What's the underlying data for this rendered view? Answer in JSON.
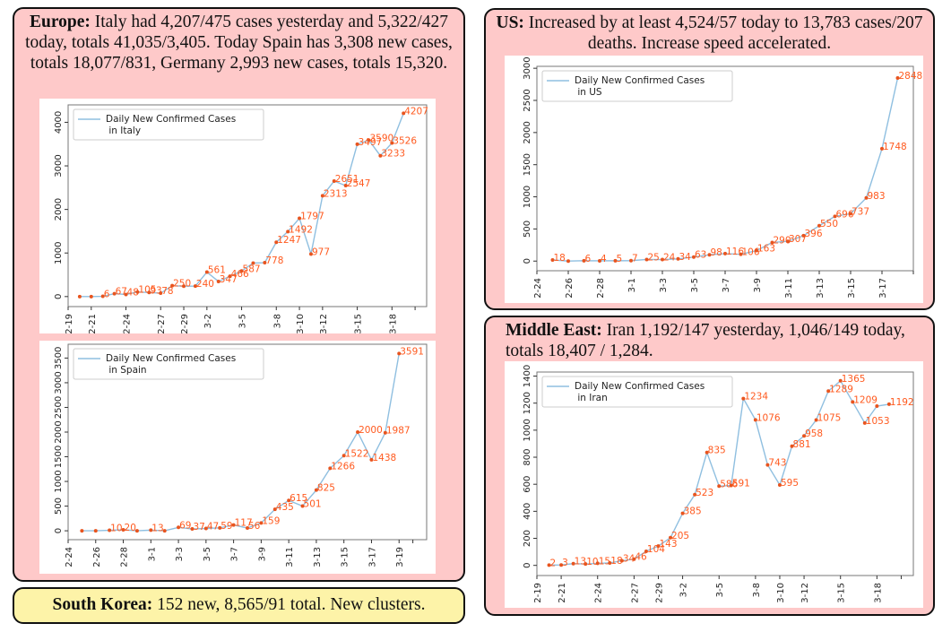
{
  "panels": {
    "europe": {
      "heading": "Europe:",
      "text": " Italy had 4,207/475 cases yesterday and 5,322/427 today, totals 41,035/3,405. Today Spain has 3,308 new cases, totals 18,077/831, Germany 2,993 new cases, totals 15,320."
    },
    "korea": {
      "heading": "South Korea:",
      "text": " 152 new, 8,565/91 total. New clusters."
    },
    "us": {
      "heading": "US:",
      "text": " Increased by at least 4,524/57 today to 13,783 cases/207 deaths. Increase speed accelerated."
    },
    "mideast": {
      "heading": "Middle East:",
      "text": " Iran 1,192/147 yesterday, 1,046/149 today, totals 18,407 / 1,284."
    }
  },
  "colors": {
    "line": "#8fbfe0",
    "marker": "#e8541e",
    "label": "#ff5a1f",
    "panel_pink": "#fec9c9",
    "panel_yellow": "#fdf3a8"
  },
  "chart_data": [
    {
      "id": "italy",
      "type": "line",
      "legend": "Daily New Confirmed Cases\n in Italy",
      "legend_position": "top-left",
      "x": [
        "2-20",
        "2-21",
        "2-22",
        "2-23",
        "2-24",
        "2-25",
        "2-26",
        "2-27",
        "2-28",
        "2-29",
        "3-1",
        "3-2",
        "3-3",
        "3-4",
        "3-5",
        "3-6",
        "3-7",
        "3-8",
        "3-9",
        "3-10",
        "3-11",
        "3-12",
        "3-13",
        "3-14",
        "3-15",
        "3-16",
        "3-17",
        "3-18",
        "3-19"
      ],
      "values": [
        0,
        0,
        6,
        67,
        48,
        105,
        93,
        78,
        250,
        238,
        240,
        561,
        347,
        466,
        587,
        769,
        778,
        1247,
        1492,
        1797,
        977,
        2313,
        2651,
        2547,
        3497,
        3590,
        3233,
        3526,
        4207
      ],
      "labels": [
        "",
        "",
        "6",
        "67",
        "48",
        "105",
        "93",
        "78",
        "250",
        "",
        "240",
        "561",
        "347",
        "466",
        "587",
        "",
        "778",
        "1247",
        "1492",
        "1797",
        "977",
        "2313",
        "2651",
        "2547",
        "3497",
        "3590",
        "3233",
        "3526",
        "4207"
      ],
      "xticks": [
        "2-19",
        "2-21",
        "2-24",
        "2-27",
        "2-29",
        "3-2",
        "3-5",
        "3-8",
        "3-10",
        "3-12",
        "3-15",
        "3-18"
      ],
      "yticks": [
        0,
        1000,
        2000,
        3000,
        4000
      ],
      "ylim": [
        -230,
        4400
      ],
      "xlim_index": [
        -1,
        30
      ]
    },
    {
      "id": "spain",
      "type": "line",
      "legend": "Daily New Confirmed Cases\n in Spain",
      "legend_position": "top-left",
      "x": [
        "2-25",
        "2-26",
        "2-27",
        "2-28",
        "2-29",
        "3-1",
        "3-2",
        "3-3",
        "3-4",
        "3-5",
        "3-6",
        "3-7",
        "3-8",
        "3-9",
        "3-10",
        "3-11",
        "3-12",
        "3-13",
        "3-14",
        "3-15",
        "3-16",
        "3-17",
        "3-18",
        "3-19"
      ],
      "values": [
        0,
        0,
        10,
        20,
        0,
        13,
        0,
        69,
        37,
        47,
        59,
        117,
        56,
        159,
        435,
        615,
        501,
        825,
        1266,
        1522,
        2000,
        1438,
        1987,
        3591
      ],
      "labels": [
        "",
        "",
        "10",
        "20",
        "",
        "13",
        "",
        "69",
        "37",
        "47",
        "59",
        "117",
        "56",
        "159",
        "435",
        "615",
        "501",
        "825",
        "1266",
        "1522",
        "2000",
        "1438",
        "1987",
        "3591"
      ],
      "xticks": [
        "2-24",
        "2-26",
        "2-28",
        "3-1",
        "3-3",
        "3-5",
        "3-7",
        "3-9",
        "3-11",
        "3-13",
        "3-15",
        "3-17",
        "3-19"
      ],
      "yticks": [
        0,
        500,
        1000,
        1500,
        2000,
        2500,
        3000,
        3500
      ],
      "ylim": [
        -180,
        3780
      ],
      "xlim_index": [
        -1,
        25
      ]
    },
    {
      "id": "us",
      "type": "line",
      "legend": "Daily New Confirmed Cases\n in US",
      "legend_position": "top-left",
      "x": [
        "2-25",
        "2-26",
        "2-27",
        "2-28",
        "2-29",
        "3-1",
        "3-2",
        "3-3",
        "3-4",
        "3-5",
        "3-6",
        "3-7",
        "3-8",
        "3-9",
        "3-10",
        "3-11",
        "3-12",
        "3-13",
        "3-14",
        "3-15",
        "3-16",
        "3-17",
        "3-18"
      ],
      "values": [
        18,
        0,
        6,
        4,
        5,
        7,
        25,
        24,
        34,
        63,
        98,
        116,
        106,
        163,
        290,
        307,
        396,
        550,
        696,
        737,
        983,
        1748,
        2848
      ],
      "labels": [
        "18",
        "",
        "6",
        "4",
        "5",
        "7",
        "25",
        "24",
        "34",
        "63",
        "98",
        "116",
        "106",
        "163",
        "290",
        "307",
        "396",
        "550",
        "696",
        "737",
        "983",
        "1748",
        "2848"
      ],
      "xticks": [
        "2-24",
        "2-26",
        "2-28",
        "3-1",
        "3-3",
        "3-5",
        "3-7",
        "3-9",
        "3-11",
        "3-13",
        "3-15",
        "3-17"
      ],
      "yticks": [
        0,
        500,
        1000,
        1500,
        2000,
        2500,
        3000
      ],
      "ylim": [
        -150,
        3030
      ],
      "xlim_index": [
        -1,
        23
      ]
    },
    {
      "id": "iran",
      "type": "line",
      "legend": "Daily New Confirmed Cases\n in Iran",
      "legend_position": "top-left",
      "x": [
        "2-20",
        "2-21",
        "2-22",
        "2-23",
        "2-24",
        "2-25",
        "2-26",
        "2-27",
        "2-28",
        "2-29",
        "3-1",
        "3-2",
        "3-3",
        "3-4",
        "3-5",
        "3-6",
        "3-7",
        "3-8",
        "3-9",
        "3-10",
        "3-11",
        "3-12",
        "3-13",
        "3-14",
        "3-15",
        "3-16",
        "3-17",
        "3-18",
        "3-19"
      ],
      "values": [
        2,
        3,
        13,
        10,
        15,
        18,
        34,
        46,
        104,
        143,
        205,
        385,
        523,
        835,
        586,
        591,
        1234,
        1076,
        743,
        595,
        881,
        958,
        1075,
        1289,
        1365,
        1209,
        1053,
        1178,
        1192
      ],
      "labels": [
        "2",
        "3",
        "13",
        "10",
        "15",
        "18",
        "34",
        "46",
        "104",
        "143",
        "205",
        "385",
        "523",
        "835",
        "586",
        "591",
        "1234",
        "1076",
        "743",
        "595",
        "881",
        "958",
        "1075",
        "1289",
        "1365",
        "1209",
        "1053",
        "",
        "1192"
      ],
      "xticks": [
        "2-19",
        "2-21",
        "2-24",
        "2-27",
        "2-29",
        "3-2",
        "3-5",
        "3-8",
        "3-10",
        "3-12",
        "3-15",
        "3-18"
      ],
      "yticks": [
        0,
        200,
        400,
        600,
        800,
        1000,
        1200,
        1400
      ],
      "ylim": [
        -75,
        1430
      ],
      "xlim_index": [
        -1,
        30
      ]
    }
  ]
}
